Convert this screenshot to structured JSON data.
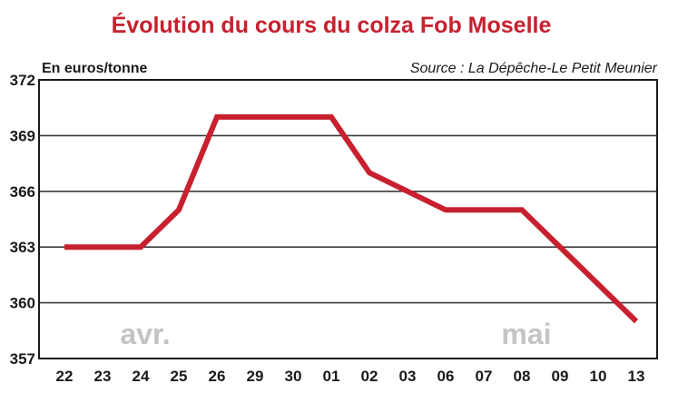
{
  "chart_data": {
    "type": "line",
    "title": "Évolution du cours du colza Fob Moselle",
    "ylabel": "En euros/tonne",
    "source": "Source : La Dépêche-Le Petit Meunier",
    "categories": [
      "22",
      "23",
      "24",
      "25",
      "26",
      "29",
      "30",
      "01",
      "02",
      "03",
      "06",
      "07",
      "08",
      "09",
      "10",
      "13"
    ],
    "series": [
      {
        "values": [
          363,
          363,
          363,
          365,
          370,
          370,
          370,
          370,
          367,
          366,
          365,
          365,
          365,
          363,
          361,
          359
        ]
      }
    ],
    "ylim": [
      357,
      372
    ],
    "yticks": [
      357,
      360,
      363,
      366,
      369,
      372
    ],
    "grid": true,
    "series_color": "#c8202f",
    "month_labels": [
      {
        "text": "avr.",
        "at_category": "23"
      },
      {
        "text": "mai",
        "at_category": "07"
      }
    ]
  }
}
